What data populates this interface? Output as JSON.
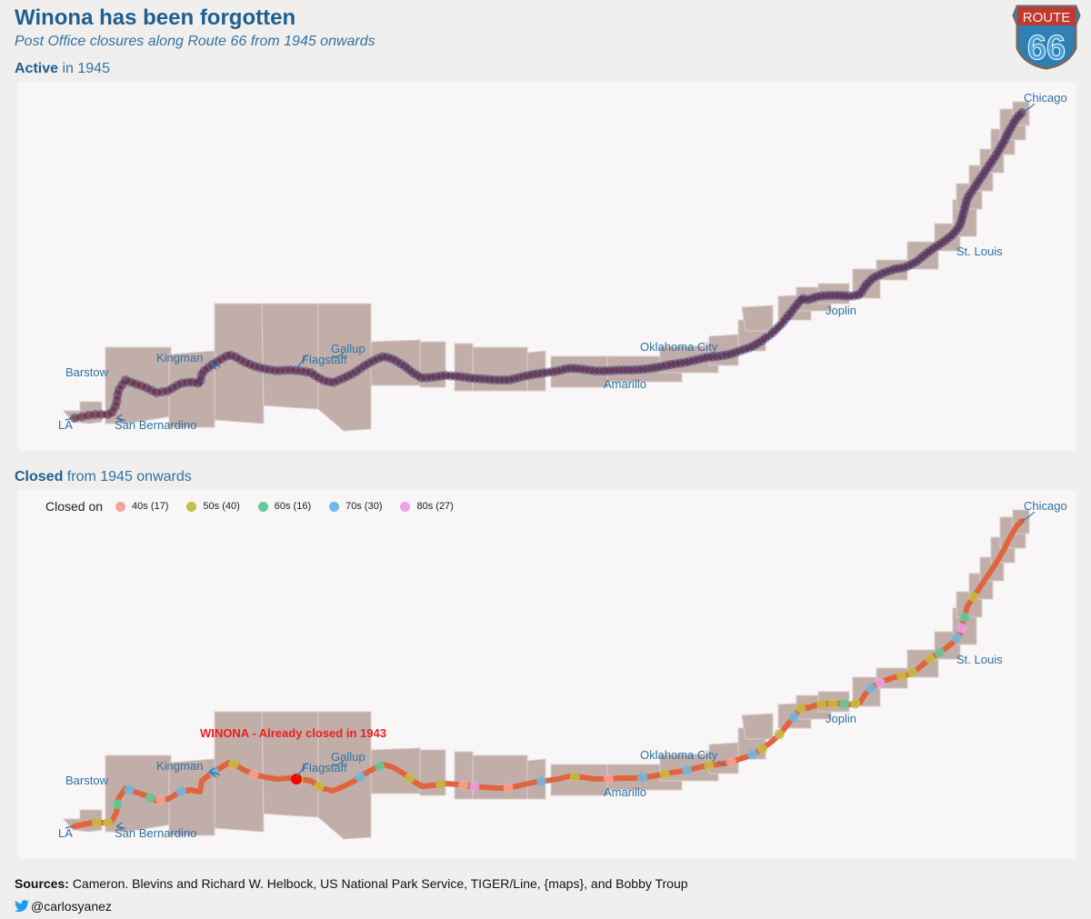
{
  "title": "Winona has  been forgotten",
  "subtitle": "Post  Office   closures   along  Route 66  from 1945  onwards",
  "panel_top": {
    "label_bold": "Active",
    "label_rest": "in  1945"
  },
  "panel_bottom": {
    "label_bold": "Closed",
    "label_rest": "from 1945 onwards"
  },
  "badge": {
    "top_text": "ROUTE",
    "number": "66"
  },
  "legend": {
    "title": "Closed  on",
    "items": [
      {
        "label": "40s (17)",
        "color": "#f4a397"
      },
      {
        "label": "50s (40)",
        "color": "#c4bd48"
      },
      {
        "label": "60s (16)",
        "color": "#5fcb9c"
      },
      {
        "label": "70s (30)",
        "color": "#6fbbe6"
      },
      {
        "label": "80s (27)",
        "color": "#e9a3e6"
      }
    ]
  },
  "cities": {
    "chicago": "Chicago",
    "st_louis": "St. Louis",
    "joplin": "Joplin",
    "oklahoma_city": "Oklahoma City",
    "amarillo": "Amarillo",
    "gallup": "Gallup",
    "flagstaff": "Flagstaff",
    "kingman": "Kingman",
    "barstow": "Barstow",
    "san_bernardino": "San Bernardino",
    "la": "LA"
  },
  "annotation": "WINONA - Already closed in 1943",
  "colors": {
    "route": "#e0643e",
    "county_fill": "#c2aea9",
    "active_dot": "#2b2f72",
    "winona": "#ff0000"
  },
  "sources": {
    "label": "Sources:",
    "text": "Cameron. Blevins   and Richard  W. Helbock,  US National  Park  Service,    TIGER/Line,   {maps},  and Bobby Troup"
  },
  "handle": "@carlosyanez"
}
